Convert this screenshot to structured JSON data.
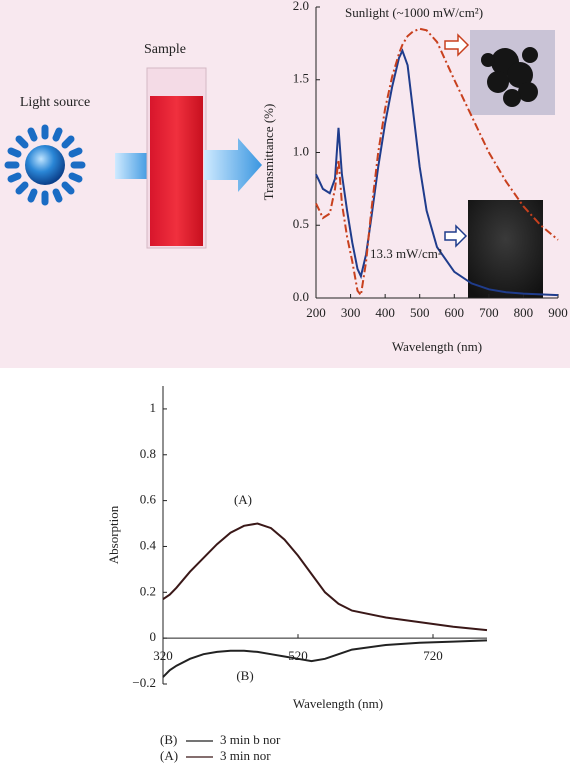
{
  "illustration": {
    "light_source": "Light source",
    "sample": "Sample"
  },
  "chart_data": [
    {
      "type": "line",
      "x_label": "Wavelength (nm)",
      "y_label": "Transmittance (%)",
      "xlim": [
        200,
        900
      ],
      "xticks": [
        200,
        300,
        400,
        500,
        600,
        700,
        800,
        900
      ],
      "ylim": [
        0,
        2
      ],
      "yticks": [
        {
          "value": 0,
          "label": "0.0"
        },
        0.5,
        {
          "value": 1,
          "label": "1.0"
        },
        1.5,
        {
          "value": 2,
          "label": "2.0"
        }
      ],
      "x": [
        200,
        210,
        220,
        240,
        255,
        265,
        275,
        290,
        305,
        320,
        330,
        345,
        360,
        380,
        400,
        420,
        440,
        450,
        465,
        480,
        500,
        520,
        550,
        600,
        650,
        700,
        750,
        800,
        850,
        900
      ],
      "series": [
        {
          "name": "13.3 mW/cm²",
          "color": "#1f3c8c",
          "dash": "solid",
          "values": [
            0.85,
            0.8,
            0.75,
            0.72,
            0.82,
            1.17,
            0.85,
            0.6,
            0.38,
            0.2,
            0.15,
            0.3,
            0.55,
            0.9,
            1.2,
            1.45,
            1.65,
            1.7,
            1.6,
            1.3,
            0.9,
            0.6,
            0.35,
            0.18,
            0.1,
            0.06,
            0.04,
            0.03,
            0.025,
            0.02
          ]
        },
        {
          "name": "Sunlight (~1000 mW/cm²)",
          "color": "#c8401e",
          "dash": "dashdot",
          "values": [
            0.65,
            0.6,
            0.55,
            0.58,
            0.75,
            0.95,
            0.65,
            0.42,
            0.25,
            0.05,
            0.02,
            0.25,
            0.6,
            1.0,
            1.3,
            1.52,
            1.68,
            1.74,
            1.8,
            1.83,
            1.85,
            1.84,
            1.76,
            1.5,
            1.25,
            1.0,
            0.8,
            0.63,
            0.5,
            0.4
          ]
        }
      ]
    },
    {
      "type": "line",
      "x_label": "Wavelength (nm)",
      "y_label": "Absorption",
      "xlim": [
        320,
        800
      ],
      "xticks": [
        320,
        520,
        720
      ],
      "ylim": [
        -0.2,
        1.1
      ],
      "yticks": [
        {
          "value": -0.2,
          "label": "−0.2"
        },
        0,
        0.2,
        0.4,
        0.6,
        0.8,
        1
      ],
      "x": [
        320,
        330,
        340,
        360,
        380,
        400,
        420,
        440,
        460,
        480,
        500,
        520,
        540,
        560,
        580,
        600,
        650,
        700,
        750,
        800
      ],
      "series": [
        {
          "label": "(A)",
          "name": "3 min nor",
          "color": "#3a1818",
          "dash": "solid",
          "values": [
            0.17,
            0.19,
            0.22,
            0.29,
            0.35,
            0.41,
            0.46,
            0.49,
            0.5,
            0.48,
            0.43,
            0.36,
            0.28,
            0.2,
            0.15,
            0.12,
            0.09,
            0.07,
            0.05,
            0.035
          ]
        },
        {
          "label": "(B)",
          "name": "3 min b nor",
          "color": "#222222",
          "dash": "solid",
          "values": [
            -0.17,
            -0.14,
            -0.12,
            -0.09,
            -0.07,
            -0.06,
            -0.055,
            -0.055,
            -0.06,
            -0.07,
            -0.08,
            -0.09,
            -0.1,
            -0.09,
            -0.07,
            -0.05,
            -0.03,
            -0.02,
            -0.015,
            -0.01
          ]
        }
      ]
    }
  ]
}
